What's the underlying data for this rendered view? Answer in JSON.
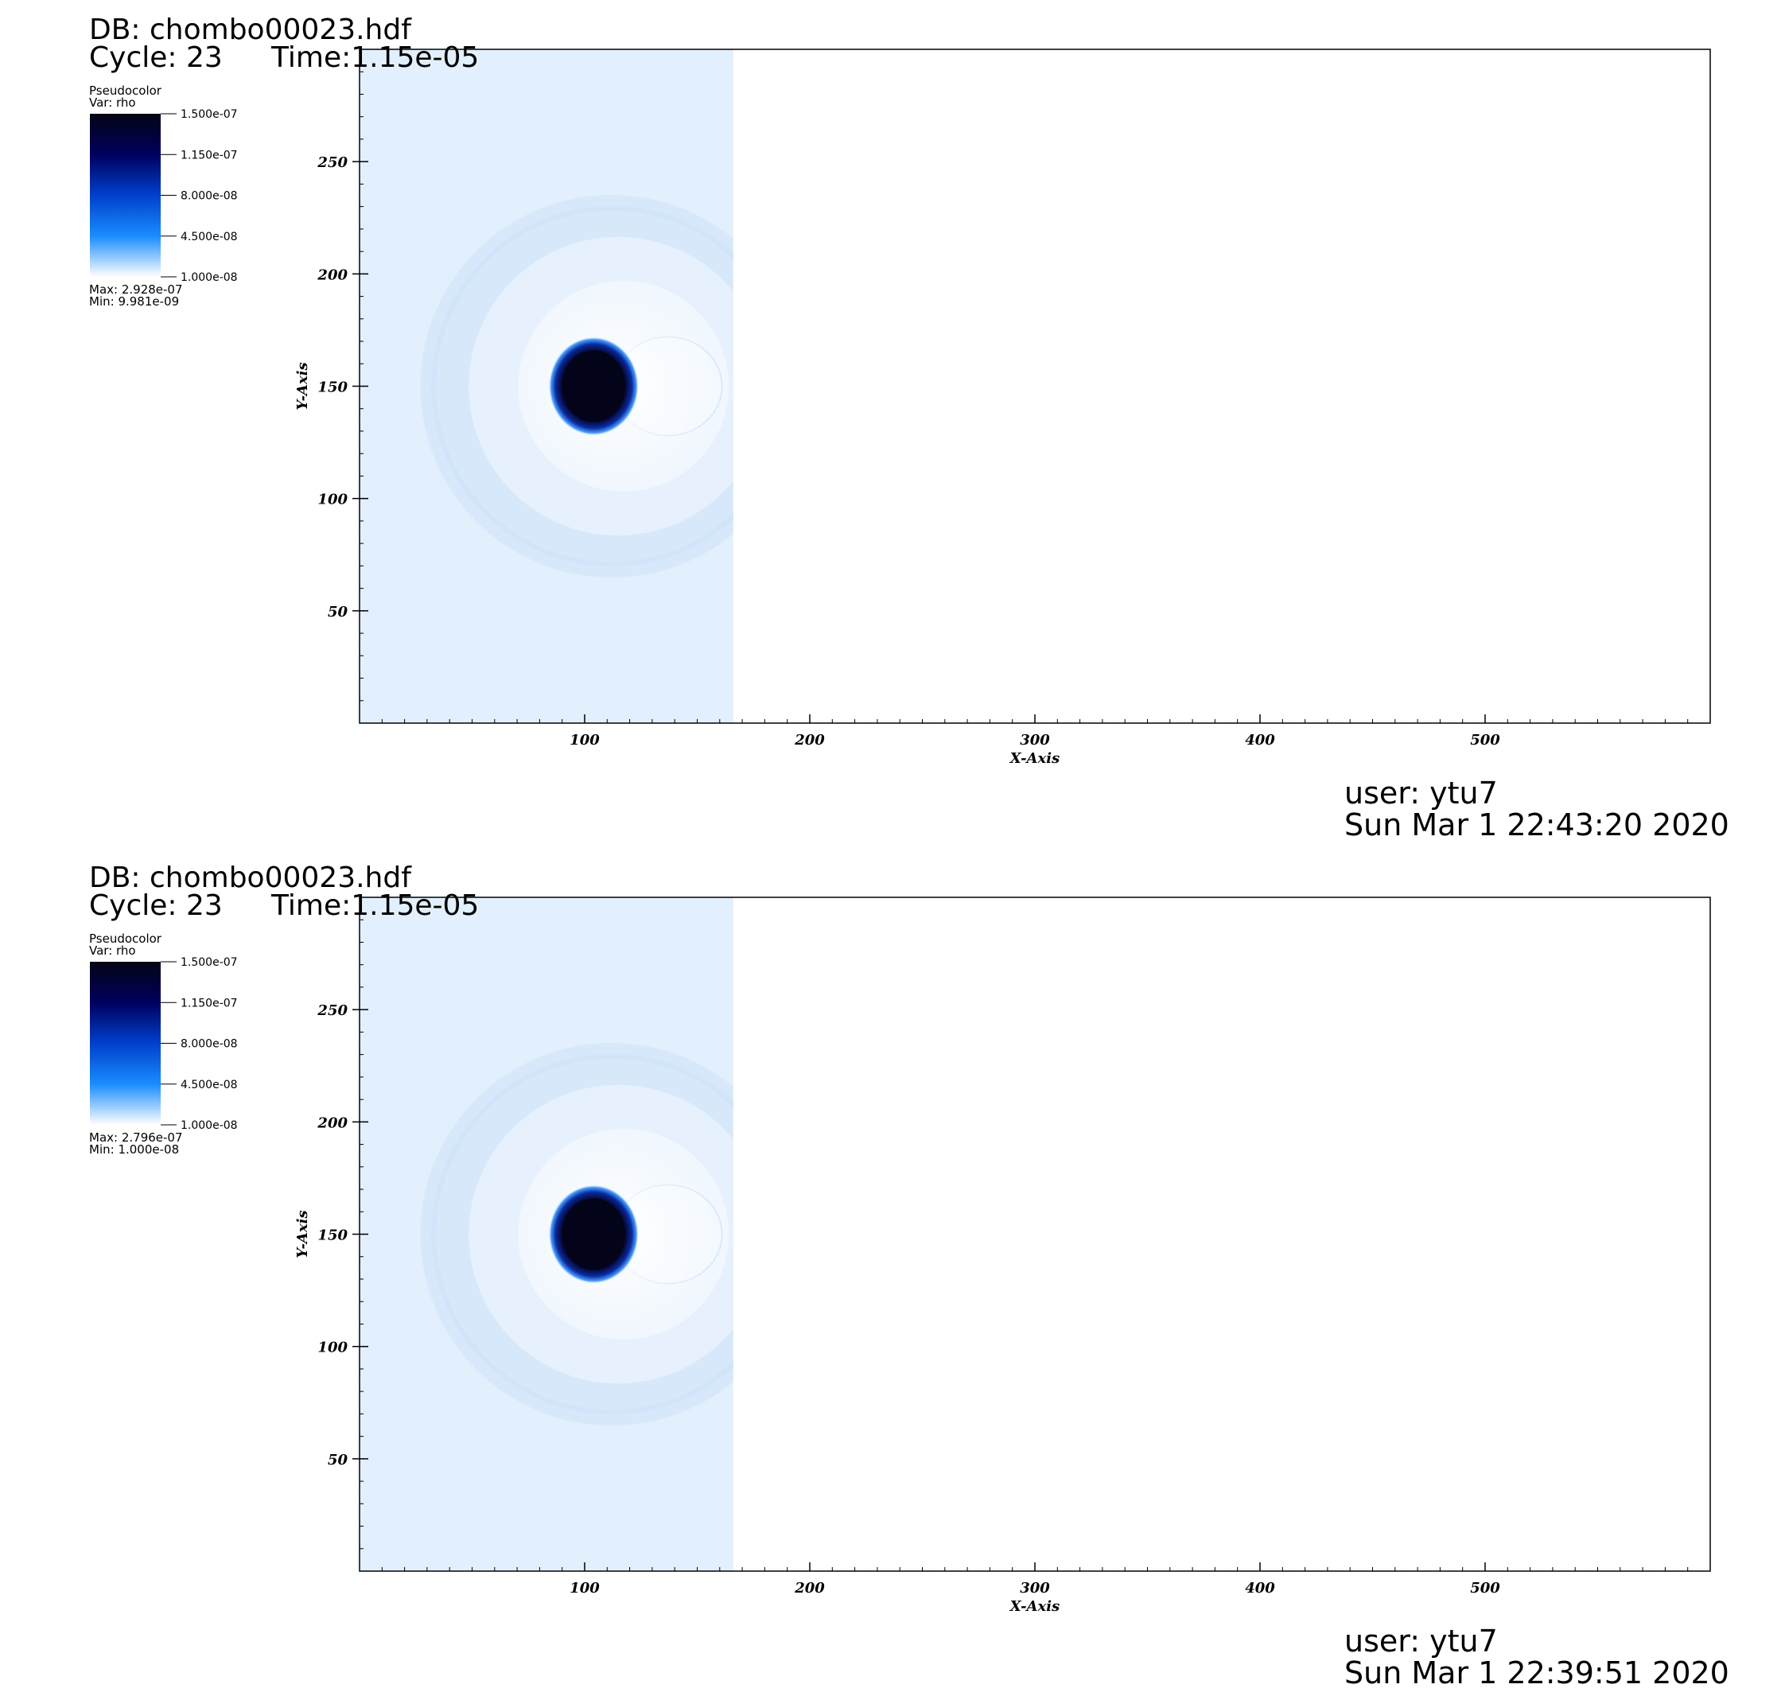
{
  "panels": [
    {
      "db_label": "DB: chombo00023.hdf",
      "cycle_label": "Cycle: 23",
      "time_label": "Time:1.15e-05",
      "legend": {
        "plot_type": "Pseudocolor",
        "var_label": "Var: rho",
        "max_label": "Max: 2.928e-07",
        "min_label": "Min: 9.981e-09"
      },
      "user_label": "user: ytu7",
      "date_label": "Sun Mar  1 22:43:20 2020"
    },
    {
      "db_label": "DB: chombo00023.hdf",
      "cycle_label": "Cycle: 23",
      "time_label": "Time:1.15e-05",
      "legend": {
        "plot_type": "Pseudocolor",
        "var_label": "Var: rho",
        "max_label": "Max: 2.796e-07",
        "min_label": "Min: 1.000e-08"
      },
      "user_label": "user: ytu7",
      "date_label": "Sun Mar  1 22:39:51 2020"
    }
  ],
  "chart_data": [
    {
      "type": "heatmap",
      "variable": "rho",
      "xlabel": "X-Axis",
      "ylabel": "Y-Axis",
      "xlim": [
        0,
        600
      ],
      "ylim": [
        0,
        300
      ],
      "x_ticks": [
        100,
        200,
        300,
        400,
        500
      ],
      "y_ticks": [
        50,
        100,
        150,
        200,
        250
      ],
      "colorbar": {
        "tick_labels": [
          "1.500e-07",
          "1.150e-07",
          "8.000e-08",
          "4.500e-08",
          "1.000e-08"
        ],
        "tick_values": [
          1.5e-07,
          1.15e-07,
          8e-08,
          4.5e-08,
          1e-08
        ],
        "colors": [
          "#040416",
          "#00005e",
          "#0040cc",
          "#1a8cff",
          "#ffffff"
        ]
      },
      "field": {
        "domain_x_max": 166,
        "dense_center": [
          104,
          150
        ],
        "dense_radius": 20,
        "shell_center": [
          112,
          150
        ],
        "shell_radius": 85,
        "background_color": "#e2effd"
      }
    },
    {
      "type": "heatmap",
      "variable": "rho",
      "xlabel": "X-Axis",
      "ylabel": "Y-Axis",
      "xlim": [
        0,
        600
      ],
      "ylim": [
        0,
        300
      ],
      "x_ticks": [
        100,
        200,
        300,
        400,
        500
      ],
      "y_ticks": [
        50,
        100,
        150,
        200,
        250
      ],
      "colorbar": {
        "tick_labels": [
          "1.500e-07",
          "1.150e-07",
          "8.000e-08",
          "4.500e-08",
          "1.000e-08"
        ],
        "tick_values": [
          1.5e-07,
          1.15e-07,
          8e-08,
          4.5e-08,
          1e-08
        ],
        "colors": [
          "#040416",
          "#00005e",
          "#0040cc",
          "#1a8cff",
          "#ffffff"
        ]
      },
      "field": {
        "domain_x_max": 166,
        "dense_center": [
          104,
          150
        ],
        "dense_radius": 20,
        "shell_center": [
          112,
          150
        ],
        "shell_radius": 85,
        "background_color": "#e2effd"
      }
    }
  ]
}
